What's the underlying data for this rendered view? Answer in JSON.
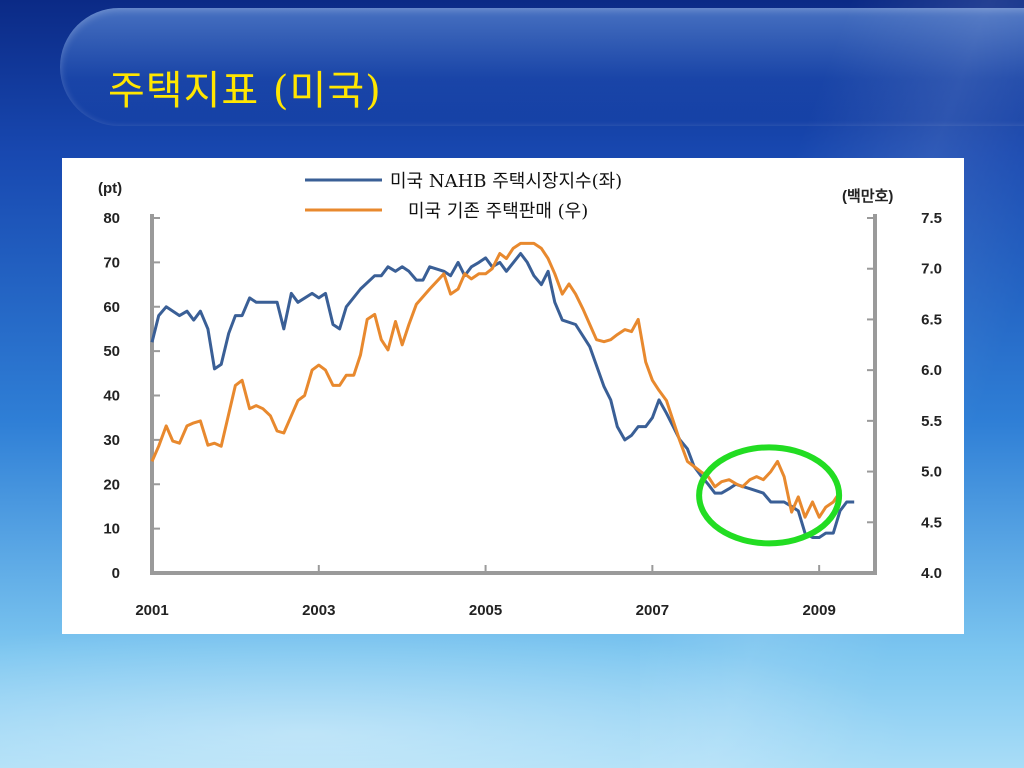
{
  "slide": {
    "title": "주택지표 (미국)"
  },
  "colors": {
    "series1": "#3a5f96",
    "series2": "#e8892e",
    "highlight": "#22dd22",
    "title": "#ffe600"
  },
  "chart_data": {
    "type": "line",
    "left_unit_label": "(pt)",
    "right_unit_label": "(백만호)",
    "left_ylim": [
      0,
      80
    ],
    "right_ylim": [
      4.0,
      7.5
    ],
    "left_ticks": [
      "0",
      "10",
      "20",
      "30",
      "40",
      "50",
      "60",
      "70",
      "80"
    ],
    "right_ticks": [
      "4.0",
      "4.5",
      "5.0",
      "5.5",
      "6.0",
      "6.5",
      "7.0",
      "7.5"
    ],
    "x_ticks": [
      "2001",
      "2003",
      "2005",
      "2007",
      "2009"
    ],
    "xlim": [
      2001.0,
      2009.25
    ],
    "legend_position": "top-center",
    "grid": false,
    "series": [
      {
        "name": "미국 NAHB 주택시장지수(좌)",
        "axis": "left",
        "points": [
          [
            2001.0,
            52
          ],
          [
            2001.08,
            58
          ],
          [
            2001.17,
            60
          ],
          [
            2001.33,
            58
          ],
          [
            2001.42,
            59
          ],
          [
            2001.5,
            57
          ],
          [
            2001.58,
            59
          ],
          [
            2001.67,
            55
          ],
          [
            2001.75,
            46
          ],
          [
            2001.83,
            47
          ],
          [
            2001.92,
            54
          ],
          [
            2002.0,
            58
          ],
          [
            2002.08,
            58
          ],
          [
            2002.17,
            62
          ],
          [
            2002.25,
            61
          ],
          [
            2002.5,
            61
          ],
          [
            2002.58,
            55
          ],
          [
            2002.67,
            63
          ],
          [
            2002.75,
            61
          ],
          [
            2002.92,
            63
          ],
          [
            2003.0,
            62
          ],
          [
            2003.08,
            63
          ],
          [
            2003.17,
            56
          ],
          [
            2003.25,
            55
          ],
          [
            2003.33,
            60
          ],
          [
            2003.5,
            64
          ],
          [
            2003.67,
            67
          ],
          [
            2003.75,
            67
          ],
          [
            2003.83,
            69
          ],
          [
            2003.92,
            68
          ],
          [
            2004.0,
            69
          ],
          [
            2004.08,
            68
          ],
          [
            2004.17,
            66
          ],
          [
            2004.25,
            66
          ],
          [
            2004.33,
            69
          ],
          [
            2004.5,
            68
          ],
          [
            2004.58,
            67
          ],
          [
            2004.67,
            70
          ],
          [
            2004.75,
            67
          ],
          [
            2004.83,
            69
          ],
          [
            2004.92,
            70
          ],
          [
            2005.0,
            71
          ],
          [
            2005.08,
            69
          ],
          [
            2005.17,
            70
          ],
          [
            2005.25,
            68
          ],
          [
            2005.42,
            72
          ],
          [
            2005.5,
            70
          ],
          [
            2005.58,
            67
          ],
          [
            2005.67,
            65
          ],
          [
            2005.75,
            68
          ],
          [
            2005.83,
            61
          ],
          [
            2005.92,
            57
          ],
          [
            2006.08,
            56
          ],
          [
            2006.25,
            51
          ],
          [
            2006.42,
            42
          ],
          [
            2006.5,
            39
          ],
          [
            2006.58,
            33
          ],
          [
            2006.67,
            30
          ],
          [
            2006.75,
            31
          ],
          [
            2006.83,
            33
          ],
          [
            2006.92,
            33
          ],
          [
            2007.0,
            35
          ],
          [
            2007.08,
            39
          ],
          [
            2007.17,
            36
          ],
          [
            2007.25,
            33
          ],
          [
            2007.33,
            30
          ],
          [
            2007.42,
            28
          ],
          [
            2007.5,
            24
          ],
          [
            2007.58,
            22
          ],
          [
            2007.67,
            20
          ],
          [
            2007.75,
            18
          ],
          [
            2007.83,
            18
          ],
          [
            2007.92,
            19
          ],
          [
            2008.0,
            20
          ],
          [
            2008.17,
            19
          ],
          [
            2008.33,
            18
          ],
          [
            2008.42,
            16
          ],
          [
            2008.58,
            16
          ],
          [
            2008.67,
            15
          ],
          [
            2008.75,
            14
          ],
          [
            2008.83,
            9
          ],
          [
            2008.92,
            8
          ],
          [
            2009.0,
            8
          ],
          [
            2009.08,
            9
          ],
          [
            2009.17,
            9
          ],
          [
            2009.25,
            14
          ],
          [
            2009.33,
            16
          ],
          [
            2009.42,
            16
          ]
        ]
      },
      {
        "name": "미국 기존 주택판매 (우)",
        "axis": "right",
        "points": [
          [
            2001.0,
            5.1
          ],
          [
            2001.08,
            5.25
          ],
          [
            2001.17,
            5.45
          ],
          [
            2001.25,
            5.3
          ],
          [
            2001.33,
            5.28
          ],
          [
            2001.42,
            5.45
          ],
          [
            2001.5,
            5.48
          ],
          [
            2001.58,
            5.5
          ],
          [
            2001.67,
            5.26
          ],
          [
            2001.75,
            5.28
          ],
          [
            2001.83,
            5.25
          ],
          [
            2002.0,
            5.85
          ],
          [
            2002.08,
            5.9
          ],
          [
            2002.17,
            5.62
          ],
          [
            2002.25,
            5.65
          ],
          [
            2002.33,
            5.62
          ],
          [
            2002.42,
            5.55
          ],
          [
            2002.5,
            5.4
          ],
          [
            2002.58,
            5.38
          ],
          [
            2002.67,
            5.55
          ],
          [
            2002.75,
            5.7
          ],
          [
            2002.83,
            5.75
          ],
          [
            2002.92,
            6.0
          ],
          [
            2003.0,
            6.05
          ],
          [
            2003.08,
            6.0
          ],
          [
            2003.17,
            5.85
          ],
          [
            2003.25,
            5.85
          ],
          [
            2003.33,
            5.95
          ],
          [
            2003.42,
            5.95
          ],
          [
            2003.5,
            6.15
          ],
          [
            2003.58,
            6.5
          ],
          [
            2003.67,
            6.55
          ],
          [
            2003.75,
            6.3
          ],
          [
            2003.83,
            6.2
          ],
          [
            2003.92,
            6.48
          ],
          [
            2004.0,
            6.25
          ],
          [
            2004.08,
            6.45
          ],
          [
            2004.17,
            6.65
          ],
          [
            2004.33,
            6.8
          ],
          [
            2004.5,
            6.95
          ],
          [
            2004.58,
            6.75
          ],
          [
            2004.67,
            6.8
          ],
          [
            2004.75,
            6.95
          ],
          [
            2004.83,
            6.9
          ],
          [
            2004.92,
            6.95
          ],
          [
            2005.0,
            6.95
          ],
          [
            2005.08,
            7.0
          ],
          [
            2005.17,
            7.15
          ],
          [
            2005.25,
            7.1
          ],
          [
            2005.33,
            7.2
          ],
          [
            2005.42,
            7.25
          ],
          [
            2005.58,
            7.25
          ],
          [
            2005.67,
            7.2
          ],
          [
            2005.75,
            7.1
          ],
          [
            2005.83,
            6.95
          ],
          [
            2005.92,
            6.75
          ],
          [
            2006.0,
            6.85
          ],
          [
            2006.08,
            6.75
          ],
          [
            2006.17,
            6.6
          ],
          [
            2006.25,
            6.45
          ],
          [
            2006.33,
            6.3
          ],
          [
            2006.42,
            6.28
          ],
          [
            2006.5,
            6.3
          ],
          [
            2006.58,
            6.35
          ],
          [
            2006.67,
            6.4
          ],
          [
            2006.75,
            6.38
          ],
          [
            2006.83,
            6.5
          ],
          [
            2006.92,
            6.08
          ],
          [
            2007.0,
            5.9
          ],
          [
            2007.08,
            5.8
          ],
          [
            2007.17,
            5.7
          ],
          [
            2007.25,
            5.5
          ],
          [
            2007.33,
            5.3
          ],
          [
            2007.42,
            5.1
          ],
          [
            2007.5,
            5.05
          ],
          [
            2007.58,
            5.0
          ],
          [
            2007.67,
            4.95
          ],
          [
            2007.75,
            4.85
          ],
          [
            2007.83,
            4.9
          ],
          [
            2007.92,
            4.92
          ],
          [
            2008.0,
            4.88
          ],
          [
            2008.08,
            4.85
          ],
          [
            2008.17,
            4.92
          ],
          [
            2008.25,
            4.95
          ],
          [
            2008.33,
            4.92
          ],
          [
            2008.42,
            5.0
          ],
          [
            2008.5,
            5.1
          ],
          [
            2008.58,
            4.95
          ],
          [
            2008.67,
            4.6
          ],
          [
            2008.75,
            4.75
          ],
          [
            2008.83,
            4.55
          ],
          [
            2008.92,
            4.7
          ],
          [
            2009.0,
            4.55
          ],
          [
            2009.08,
            4.65
          ],
          [
            2009.17,
            4.7
          ],
          [
            2009.25,
            4.8
          ]
        ]
      }
    ],
    "annotation": {
      "type": "ellipse",
      "center_x": 2008.4,
      "center_y_left": 17.5,
      "label": ""
    }
  }
}
